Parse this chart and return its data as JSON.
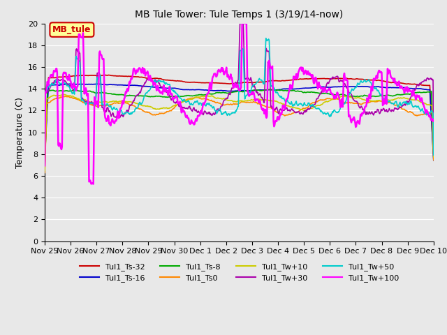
{
  "title": "MB Tule Tower: Tule Temps 1 (3/19/14-now)",
  "ylabel": "Temperature (C)",
  "xlabel": "",
  "ylim": [
    0,
    20
  ],
  "yticks": [
    0,
    2,
    4,
    6,
    8,
    10,
    12,
    14,
    16,
    18,
    20
  ],
  "xlim": [
    0,
    15
  ],
  "xtick_labels": [
    "Nov 25",
    "Nov 26",
    "Nov 27",
    "Nov 28",
    "Nov 29",
    "Nov 30",
    "Dec 1",
    "Dec 2",
    "Dec 3",
    "Dec 4",
    "Dec 5",
    "Dec 6",
    "Dec 7",
    "Dec 8",
    "Dec 9",
    "Dec 10"
  ],
  "background_color": "#e8e8e8",
  "plot_bg_color": "#e8e8e8",
  "grid_color": "white",
  "series": {
    "Tul1_Ts-32": {
      "color": "#cc0000",
      "lw": 1.2
    },
    "Tul1_Ts-16": {
      "color": "#0000cc",
      "lw": 1.2
    },
    "Tul1_Ts-8": {
      "color": "#00aa00",
      "lw": 1.2
    },
    "Tul1_Ts0": {
      "color": "#ff8800",
      "lw": 1.2
    },
    "Tul1_Tw+10": {
      "color": "#cccc00",
      "lw": 1.2
    },
    "Tul1_Tw+30": {
      "color": "#aa00aa",
      "lw": 1.2
    },
    "Tul1_Tw+50": {
      "color": "#00cccc",
      "lw": 1.2
    },
    "Tul1_Tw+100": {
      "color": "#ff00ff",
      "lw": 1.8
    }
  },
  "legend_box": {
    "label": "MB_tule",
    "bg": "#ffff99",
    "border": "#cc0000",
    "text_color": "#cc0000"
  }
}
